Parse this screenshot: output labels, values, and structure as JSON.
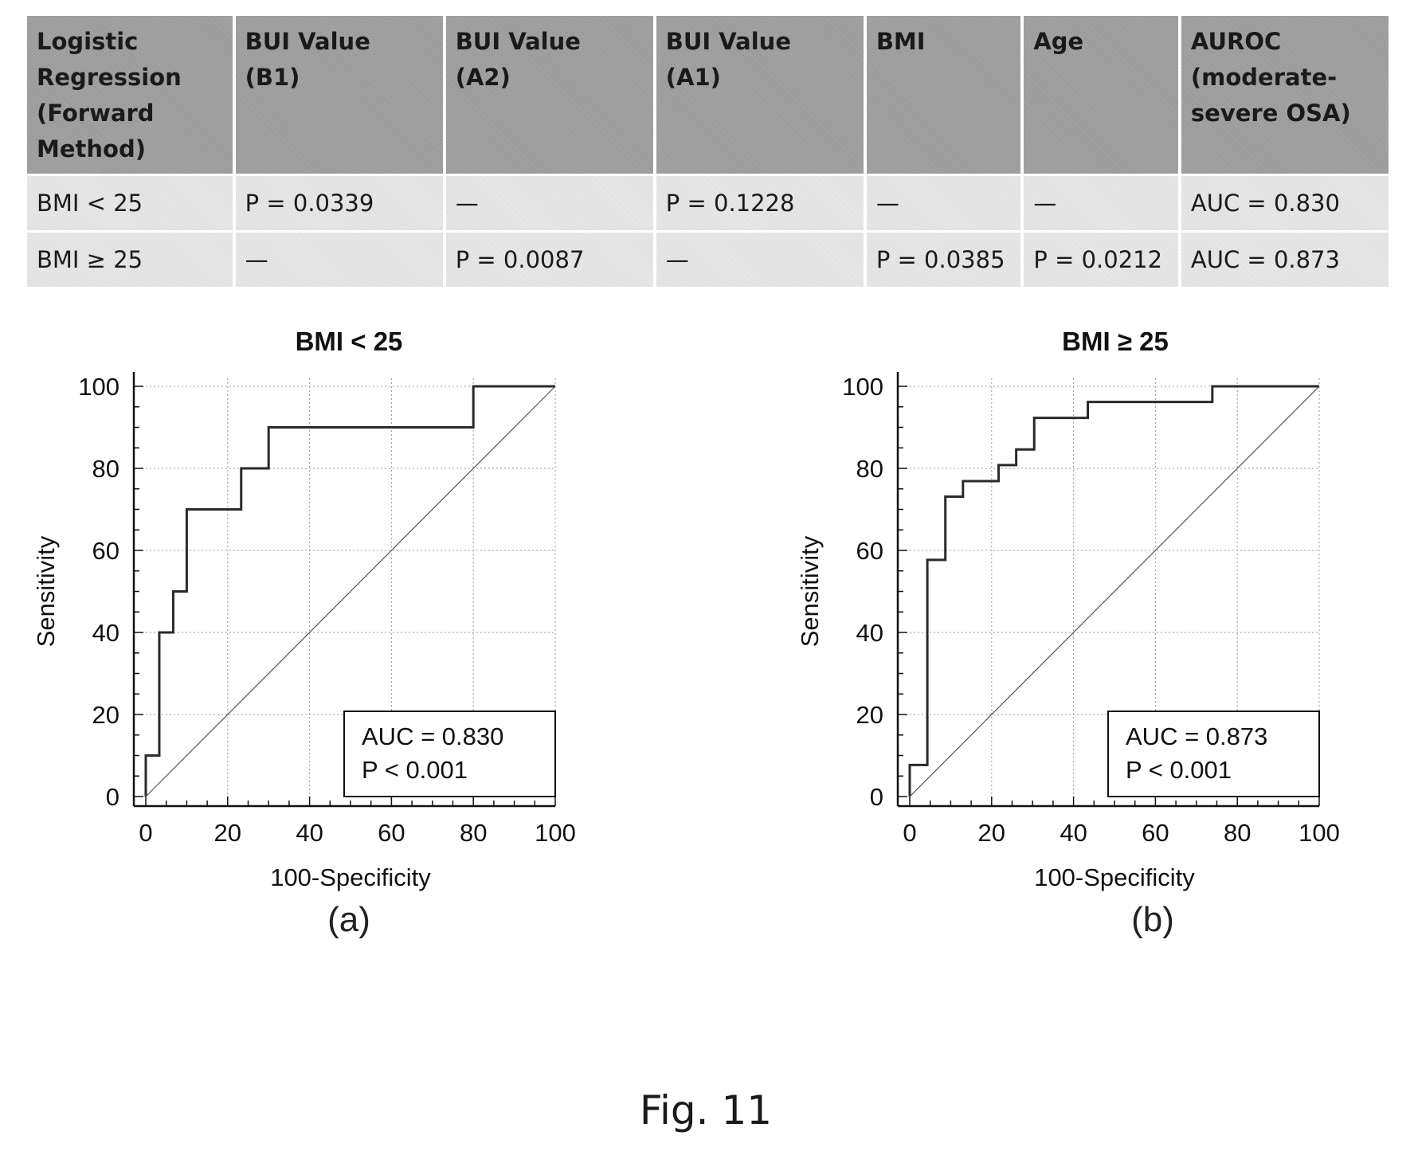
{
  "table": {
    "headers": [
      "Logistic Regression (Forward Method)",
      "BUI Value (B1)",
      "BUI Value (A2)",
      "BUI Value (A1)",
      "BMI",
      "Age",
      "AUROC (moderate-severe OSA)"
    ],
    "header_lines": [
      [
        "Logistic",
        "Regression",
        "(Forward",
        "Method)"
      ],
      [
        "BUI Value",
        "(B1)"
      ],
      [
        "BUI Value",
        "(A2)"
      ],
      [
        "BUI Value",
        "(A1)"
      ],
      [
        "BMI"
      ],
      [
        "Age"
      ],
      [
        "AUROC",
        "(moderate-",
        "severe OSA)"
      ]
    ],
    "rows": [
      [
        "BMI < 25",
        "P = 0.0339",
        "—",
        "P = 0.1228",
        "—",
        "—",
        "AUC = 0.830"
      ],
      [
        "BMI ≥ 25",
        "—",
        "P = 0.0087",
        "—",
        "P = 0.0385",
        "P = 0.0212",
        "AUC = 0.873"
      ]
    ]
  },
  "chart_data": [
    {
      "type": "line",
      "title": "BMI < 25",
      "xlabel": "100-Specificity",
      "ylabel": "Sensitivity",
      "xlim": [
        0,
        100
      ],
      "ylim": [
        0,
        100
      ],
      "xticks": [
        0,
        20,
        40,
        60,
        80,
        100
      ],
      "yticks": [
        0,
        20,
        40,
        60,
        80,
        100
      ],
      "grid": true,
      "series": [
        {
          "style": "step",
          "x": [
            0,
            0,
            3.3,
            3.3,
            6.7,
            6.7,
            10,
            10,
            23.3,
            23.3,
            30,
            30,
            80,
            80,
            100
          ],
          "y": [
            0,
            10,
            10,
            40,
            40,
            50,
            50,
            70,
            70,
            80,
            80,
            90,
            90,
            100,
            100
          ]
        },
        {
          "style": "diagonal",
          "x": [
            0,
            100
          ],
          "y": [
            0,
            100
          ]
        }
      ],
      "annotation": [
        "AUC = 0.830",
        "P < 0.001"
      ],
      "caption": "(a)"
    },
    {
      "type": "line",
      "title": "BMI ≥ 25",
      "xlabel": "100-Specificity",
      "ylabel": "Sensitivity",
      "xlim": [
        0,
        100
      ],
      "ylim": [
        0,
        100
      ],
      "xticks": [
        0,
        20,
        40,
        60,
        80,
        100
      ],
      "yticks": [
        0,
        20,
        40,
        60,
        80,
        100
      ],
      "grid": true,
      "series": [
        {
          "style": "step",
          "x": [
            0,
            0,
            4.3,
            4.3,
            8.7,
            8.7,
            13,
            13,
            15.2,
            15.2,
            21.7,
            21.7,
            26,
            26,
            30.4,
            30.4,
            34.8,
            34.8,
            43.5,
            43.5,
            73.9,
            73.9,
            100
          ],
          "y": [
            0,
            7.7,
            7.7,
            57.7,
            57.7,
            73.1,
            73.1,
            76.9,
            76.9,
            76.9,
            76.9,
            80.8,
            80.8,
            84.6,
            84.6,
            92.3,
            92.3,
            92.3,
            92.3,
            96.2,
            96.2,
            100,
            100
          ]
        },
        {
          "style": "diagonal",
          "x": [
            0,
            100
          ],
          "y": [
            0,
            100
          ]
        }
      ],
      "annotation": [
        "AUC = 0.873",
        "P < 0.001"
      ],
      "caption": "(b)"
    }
  ],
  "figure_label": "Fig. 11"
}
